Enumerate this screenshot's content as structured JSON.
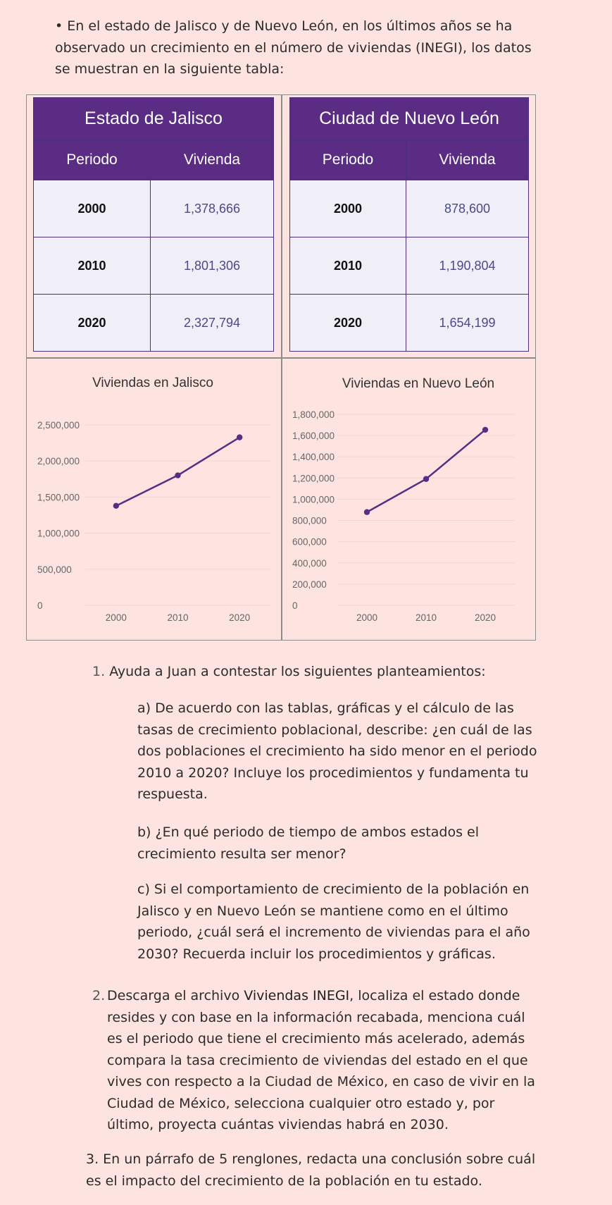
{
  "intro": "• En el estado de Jalisco y de Nuevo León, en los últimos años se ha observado un crecimiento en el número de viviendas (INEGI), los datos se muestran en la siguiente tabla:",
  "tables": {
    "jalisco": {
      "title": "Estado de Jalisco",
      "col_period": "Periodo",
      "col_value": "Vivienda",
      "rows": [
        {
          "period": "2000",
          "value": "1,378,666"
        },
        {
          "period": "2010",
          "value": "1,801,306"
        },
        {
          "period": "2020",
          "value": "2,327,794"
        }
      ]
    },
    "nuevo_leon": {
      "title": "Ciudad de Nuevo León",
      "col_period": "Periodo",
      "col_value": "Vivienda",
      "rows": [
        {
          "period": "2000",
          "value": "878,600"
        },
        {
          "period": "2010",
          "value": "1,190,804"
        },
        {
          "period": "2020",
          "value": "1,654,199"
        }
      ]
    }
  },
  "chart_data": [
    {
      "type": "line",
      "title": "Viviendas en Jalisco",
      "x": [
        "2000",
        "2010",
        "2020"
      ],
      "series": [
        {
          "values": [
            1378666,
            1801306,
            2327794
          ]
        }
      ],
      "ylim": [
        0,
        2500000
      ],
      "yticks": [
        0,
        500000,
        1000000,
        1500000,
        2000000,
        2500000
      ],
      "ytick_labels": [
        "0",
        "500,000",
        "1,000,000",
        "1,500,000",
        "2,000,000",
        "2,500,000"
      ],
      "color": "#5b2c83",
      "grid": true
    },
    {
      "type": "line",
      "title": "Viviendas en Nuevo León",
      "x": [
        "2000",
        "2010",
        "2020"
      ],
      "series": [
        {
          "values": [
            878600,
            1190804,
            1654199
          ]
        }
      ],
      "ylim": [
        0,
        1800000
      ],
      "yticks": [
        0,
        200000,
        400000,
        600000,
        800000,
        1000000,
        1200000,
        1400000,
        1600000,
        1800000
      ],
      "ytick_labels": [
        "0",
        "200,000",
        "400,000",
        "600,000",
        "800,000",
        "1,000,000",
        "1,200,000",
        "1,400,000",
        "1,600,000",
        "1,800,000"
      ],
      "color": "#5b2c83",
      "grid": true
    }
  ],
  "questions": {
    "q1": {
      "num": "1.",
      "text": "Ayuda a Juan a contestar los siguientes planteamientos:"
    },
    "q1a": "a) De acuerdo con las tablas, gráficas y el cálculo de las tasas de crecimiento poblacional, describe: ¿en cuál de las dos poblaciones el crecimiento ha sido menor en el periodo 2010 a 2020? Incluye los procedimientos y fundamenta tu respuesta.",
    "q1b": "b) ¿En qué periodo de tiempo de ambos estados el crecimiento resulta ser menor?",
    "q1c": "c)  Si el comportamiento de crecimiento de la población en Jalisco y en Nuevo León se mantiene como en el último periodo, ¿cuál será el incremento de viviendas para el año 2030? Recuerda incluir los procedimientos y gráficas.",
    "q2": {
      "num": "2.",
      "pre": "Descarga el archivo ",
      "bold": "Viviendas INEGI",
      "post": ", localiza el estado donde resides y con base en la información recabada, menciona cuál es el periodo que tiene el crecimiento más acelerado, además compara la tasa crecimiento de viviendas del estado en el que vives con respecto a la Ciudad de México, en caso de vivir en la Ciudad de México, selecciona cualquier otro estado y, por último, proyecta cuántas viviendas habrá en 2030."
    },
    "q3": "3. En un párrafo de 5 renglones, redacta una conclusión sobre cuál es el impacto del crecimiento de la población en tu estado."
  }
}
